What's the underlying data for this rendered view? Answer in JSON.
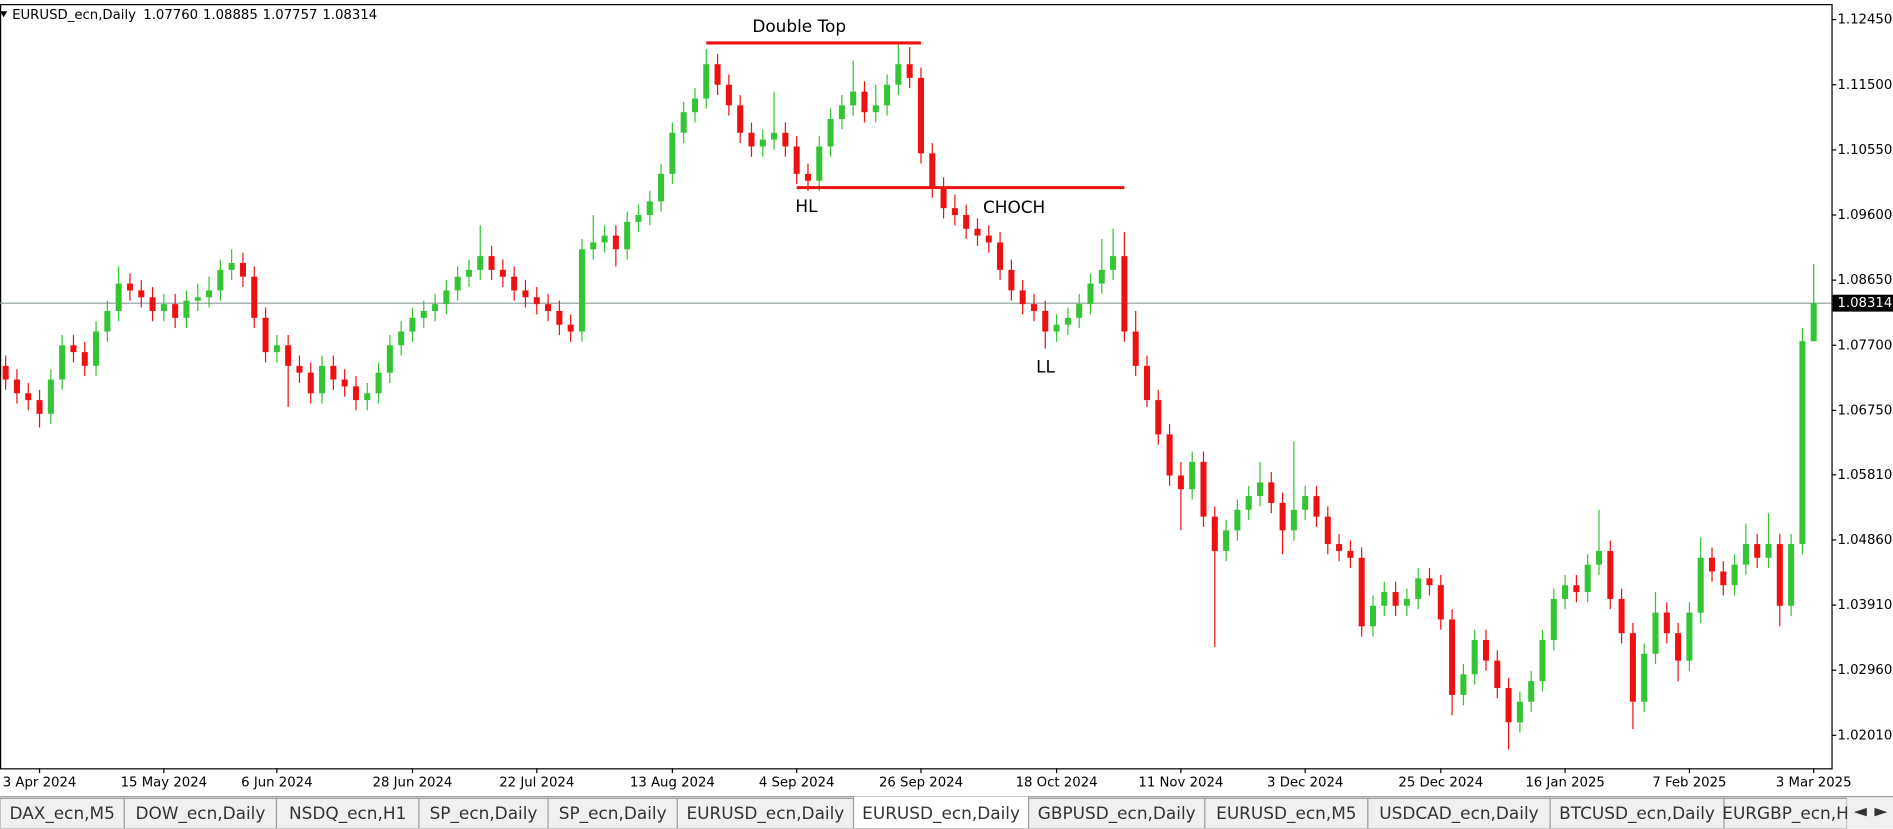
{
  "chart_data": {
    "type": "candlestick",
    "symbol": "EURUSD_ecn,Daily",
    "header_values": [
      "1.07760",
      "1.08885",
      "1.07757",
      "1.08314"
    ],
    "up_color": "#33c533",
    "down_color": "#ee1111",
    "ylim": [
      1.0153,
      1.1266
    ],
    "yticks": [
      {
        "value": 1.1245,
        "label": "1.12450"
      },
      {
        "value": 1.115,
        "label": "1.11500"
      },
      {
        "value": 1.1055,
        "label": "1.10550"
      },
      {
        "value": 1.096,
        "label": "1.09600"
      },
      {
        "value": 1.0865,
        "label": "1.08650"
      },
      {
        "value": 1.077,
        "label": "1.07700"
      },
      {
        "value": 1.0675,
        "label": "1.06750"
      },
      {
        "value": 1.0581,
        "label": "1.05810"
      },
      {
        "value": 1.0486,
        "label": "1.04860"
      },
      {
        "value": 1.0391,
        "label": "1.03910"
      },
      {
        "value": 1.0296,
        "label": "1.02960"
      },
      {
        "value": 1.0201,
        "label": "1.02010"
      }
    ],
    "xticks": [
      {
        "value": 3,
        "label": "3 Apr 2024"
      },
      {
        "value": 14,
        "label": "15 May 2024"
      },
      {
        "value": 24,
        "label": "6 Jun 2024"
      },
      {
        "value": 36,
        "label": "28 Jun 2024"
      },
      {
        "value": 47,
        "label": "22 Jul 2024"
      },
      {
        "value": 59,
        "label": "13 Aug 2024"
      },
      {
        "value": 70,
        "label": "4 Sep 2024"
      },
      {
        "value": 81,
        "label": "26 Sep 2024"
      },
      {
        "value": 93,
        "label": "18 Oct 2024"
      },
      {
        "value": 104,
        "label": "11 Nov 2024"
      },
      {
        "value": 115,
        "label": "3 Dec 2024"
      },
      {
        "value": 127,
        "label": "25 Dec 2024"
      },
      {
        "value": 138,
        "label": "16 Jan 2025"
      },
      {
        "value": 149,
        "label": "7 Feb 2025"
      },
      {
        "value": 160,
        "label": "3 Mar 2025"
      }
    ],
    "last_price": {
      "value": 1.08314,
      "label": "1.08314"
    },
    "levels": [
      {
        "value": 1.1211,
        "from": 62,
        "to": 81,
        "color": "#ee1111"
      },
      {
        "value": 1.1,
        "from": 70,
        "to": 99,
        "color": "#ee1111"
      }
    ],
    "annotations": [
      "Double Top",
      "HL",
      "CHOCH",
      "LL"
    ],
    "candles": [
      [
        1.074,
        1.0755,
        1.0705,
        1.072
      ],
      [
        1.072,
        1.0735,
        1.0685,
        1.07
      ],
      [
        1.07,
        1.0715,
        1.0675,
        1.069
      ],
      [
        1.069,
        1.0705,
        1.065,
        1.067
      ],
      [
        1.067,
        1.0735,
        1.0655,
        1.072
      ],
      [
        1.072,
        1.0785,
        1.0705,
        1.077
      ],
      [
        1.077,
        1.0785,
        1.0745,
        1.076
      ],
      [
        1.076,
        1.0775,
        1.0725,
        1.074
      ],
      [
        1.074,
        1.0805,
        1.0725,
        1.079
      ],
      [
        1.079,
        1.0835,
        1.0775,
        1.082
      ],
      [
        1.082,
        1.0885,
        1.0805,
        1.086
      ],
      [
        1.086,
        1.0875,
        1.0835,
        1.085
      ],
      [
        1.085,
        1.0865,
        1.0825,
        1.084
      ],
      [
        1.084,
        1.0855,
        1.0805,
        1.082
      ],
      [
        1.082,
        1.0845,
        1.0805,
        1.083
      ],
      [
        1.083,
        1.0845,
        1.0795,
        1.081
      ],
      [
        1.081,
        1.085,
        1.0795,
        1.0835
      ],
      [
        1.0835,
        1.086,
        1.082,
        1.084
      ],
      [
        1.084,
        1.087,
        1.0825,
        1.085
      ],
      [
        1.085,
        1.0895,
        1.0835,
        1.088
      ],
      [
        1.088,
        1.091,
        1.0865,
        1.089
      ],
      [
        1.089,
        1.0905,
        1.0855,
        1.087
      ],
      [
        1.087,
        1.0885,
        1.0795,
        1.081
      ],
      [
        1.081,
        1.0825,
        1.0745,
        1.076
      ],
      [
        1.076,
        1.0785,
        1.0745,
        1.077
      ],
      [
        1.077,
        1.0785,
        1.068,
        1.074
      ],
      [
        1.074,
        1.0755,
        1.0715,
        1.073
      ],
      [
        1.073,
        1.0745,
        1.0685,
        1.07
      ],
      [
        1.07,
        1.0755,
        1.0685,
        1.074
      ],
      [
        1.074,
        1.0755,
        1.0705,
        1.072
      ],
      [
        1.072,
        1.0735,
        1.0695,
        1.071
      ],
      [
        1.071,
        1.0725,
        1.0675,
        1.069
      ],
      [
        1.069,
        1.0715,
        1.0675,
        1.07
      ],
      [
        1.07,
        1.0745,
        1.0685,
        1.073
      ],
      [
        1.073,
        1.0785,
        1.0715,
        1.077
      ],
      [
        1.077,
        1.0805,
        1.0755,
        1.079
      ],
      [
        1.079,
        1.0825,
        1.0775,
        1.081
      ],
      [
        1.081,
        1.0835,
        1.0795,
        1.082
      ],
      [
        1.082,
        1.0845,
        1.0805,
        1.083
      ],
      [
        1.083,
        1.0865,
        1.0815,
        1.085
      ],
      [
        1.085,
        1.0885,
        1.0835,
        1.087
      ],
      [
        1.087,
        1.0895,
        1.0855,
        1.088
      ],
      [
        1.088,
        1.0945,
        1.0865,
        1.09
      ],
      [
        1.09,
        1.0915,
        1.0865,
        1.088
      ],
      [
        1.088,
        1.0895,
        1.0855,
        1.087
      ],
      [
        1.087,
        1.0885,
        1.0835,
        1.085
      ],
      [
        1.085,
        1.0865,
        1.0825,
        1.084
      ],
      [
        1.084,
        1.0855,
        1.0815,
        1.083
      ],
      [
        1.083,
        1.0845,
        1.0805,
        1.082
      ],
      [
        1.082,
        1.0835,
        1.0785,
        1.08
      ],
      [
        1.08,
        1.0815,
        1.0775,
        1.079
      ],
      [
        1.079,
        1.0925,
        1.0775,
        1.091
      ],
      [
        1.091,
        1.096,
        1.0895,
        1.092
      ],
      [
        1.092,
        1.0945,
        1.0905,
        1.093
      ],
      [
        1.093,
        1.0945,
        1.0885,
        1.091
      ],
      [
        1.091,
        1.0965,
        1.0895,
        1.095
      ],
      [
        1.095,
        1.0975,
        1.0935,
        1.096
      ],
      [
        1.096,
        1.0995,
        1.0945,
        1.098
      ],
      [
        1.098,
        1.1035,
        1.0965,
        1.102
      ],
      [
        1.102,
        1.1095,
        1.1005,
        1.108
      ],
      [
        1.108,
        1.1125,
        1.1065,
        1.111
      ],
      [
        1.111,
        1.1145,
        1.1095,
        1.113
      ],
      [
        1.113,
        1.1202,
        1.1115,
        1.118
      ],
      [
        1.118,
        1.1195,
        1.1135,
        1.115
      ],
      [
        1.115,
        1.1165,
        1.1105,
        1.112
      ],
      [
        1.112,
        1.1135,
        1.1065,
        1.108
      ],
      [
        1.108,
        1.1095,
        1.1045,
        1.106
      ],
      [
        1.106,
        1.1085,
        1.1045,
        1.107
      ],
      [
        1.107,
        1.114,
        1.1055,
        1.108
      ],
      [
        1.108,
        1.1095,
        1.1045,
        1.106
      ],
      [
        1.106,
        1.1075,
        1.1005,
        1.102
      ],
      [
        1.102,
        1.1035,
        1.0995,
        1.101
      ],
      [
        1.101,
        1.1075,
        1.0995,
        1.106
      ],
      [
        1.106,
        1.1115,
        1.1045,
        1.11
      ],
      [
        1.11,
        1.1135,
        1.1085,
        1.112
      ],
      [
        1.112,
        1.1185,
        1.1105,
        1.114
      ],
      [
        1.114,
        1.1155,
        1.1095,
        1.111
      ],
      [
        1.111,
        1.115,
        1.1095,
        1.112
      ],
      [
        1.112,
        1.1165,
        1.1105,
        1.115
      ],
      [
        1.115,
        1.121,
        1.1135,
        1.118
      ],
      [
        1.118,
        1.1205,
        1.1145,
        1.116
      ],
      [
        1.116,
        1.1175,
        1.1035,
        1.105
      ],
      [
        1.105,
        1.1065,
        1.0985,
        1.1
      ],
      [
        1.1,
        1.1015,
        1.0955,
        1.097
      ],
      [
        1.097,
        1.099,
        1.0945,
        1.096
      ],
      [
        1.096,
        1.0975,
        1.0925,
        1.094
      ],
      [
        1.094,
        1.0955,
        1.0915,
        1.093
      ],
      [
        1.093,
        1.0945,
        1.0905,
        1.092
      ],
      [
        1.092,
        1.0935,
        1.0865,
        1.088
      ],
      [
        1.088,
        1.0895,
        1.0835,
        1.085
      ],
      [
        1.085,
        1.0865,
        1.0815,
        1.083
      ],
      [
        1.083,
        1.0845,
        1.0805,
        1.082
      ],
      [
        1.082,
        1.0835,
        1.0765,
        1.079
      ],
      [
        1.079,
        1.0815,
        1.0775,
        1.08
      ],
      [
        1.08,
        1.0825,
        1.0785,
        1.081
      ],
      [
        1.081,
        1.0845,
        1.0795,
        1.083
      ],
      [
        1.083,
        1.0875,
        1.0815,
        1.086
      ],
      [
        1.086,
        1.0925,
        1.0845,
        1.088
      ],
      [
        1.088,
        1.094,
        1.0865,
        1.09
      ],
      [
        1.09,
        1.0935,
        1.0775,
        1.079
      ],
      [
        1.079,
        1.082,
        1.0725,
        1.074
      ],
      [
        1.074,
        1.0755,
        1.068,
        1.069
      ],
      [
        1.069,
        1.0705,
        1.0625,
        1.064
      ],
      [
        1.064,
        1.0655,
        1.0565,
        1.058
      ],
      [
        1.058,
        1.06,
        1.05,
        1.056
      ],
      [
        1.056,
        1.0615,
        1.0545,
        1.06
      ],
      [
        1.06,
        1.0615,
        1.0505,
        1.052
      ],
      [
        1.052,
        1.0535,
        1.033,
        1.047
      ],
      [
        1.047,
        1.0515,
        1.0455,
        1.05
      ],
      [
        1.05,
        1.0545,
        1.0485,
        1.053
      ],
      [
        1.053,
        1.0565,
        1.0515,
        1.055
      ],
      [
        1.055,
        1.06,
        1.0535,
        1.057
      ],
      [
        1.057,
        1.0585,
        1.0525,
        1.054
      ],
      [
        1.054,
        1.0555,
        1.0465,
        1.05
      ],
      [
        1.05,
        1.063,
        1.0485,
        1.053
      ],
      [
        1.053,
        1.0565,
        1.0515,
        1.055
      ],
      [
        1.055,
        1.0565,
        1.0505,
        1.052
      ],
      [
        1.052,
        1.0535,
        1.0465,
        1.048
      ],
      [
        1.048,
        1.0495,
        1.0455,
        1.047
      ],
      [
        1.047,
        1.0485,
        1.0445,
        1.046
      ],
      [
        1.046,
        1.0475,
        1.0345,
        1.036
      ],
      [
        1.036,
        1.0405,
        1.0345,
        1.039
      ],
      [
        1.039,
        1.0425,
        1.0375,
        1.041
      ],
      [
        1.041,
        1.0425,
        1.0375,
        1.039
      ],
      [
        1.039,
        1.0415,
        1.0375,
        1.04
      ],
      [
        1.04,
        1.0445,
        1.0385,
        1.043
      ],
      [
        1.043,
        1.0445,
        1.0405,
        1.042
      ],
      [
        1.042,
        1.0435,
        1.0355,
        1.037
      ],
      [
        1.037,
        1.0385,
        1.023,
        1.026
      ],
      [
        1.026,
        1.0305,
        1.0245,
        1.029
      ],
      [
        1.029,
        1.0355,
        1.0275,
        1.034
      ],
      [
        1.034,
        1.0355,
        1.0295,
        1.031
      ],
      [
        1.031,
        1.0325,
        1.0255,
        1.027
      ],
      [
        1.027,
        1.0285,
        1.018,
        1.022
      ],
      [
        1.022,
        1.0265,
        1.0205,
        1.025
      ],
      [
        1.025,
        1.0295,
        1.0235,
        1.028
      ],
      [
        1.028,
        1.0355,
        1.0265,
        1.034
      ],
      [
        1.034,
        1.0415,
        1.0325,
        1.04
      ],
      [
        1.04,
        1.0435,
        1.0385,
        1.042
      ],
      [
        1.042,
        1.0435,
        1.0395,
        1.041
      ],
      [
        1.041,
        1.0465,
        1.0395,
        1.045
      ],
      [
        1.045,
        1.053,
        1.0435,
        1.047
      ],
      [
        1.047,
        1.0485,
        1.0385,
        1.04
      ],
      [
        1.04,
        1.0415,
        1.0335,
        1.035
      ],
      [
        1.035,
        1.0365,
        1.021,
        1.025
      ],
      [
        1.025,
        1.0335,
        1.0235,
        1.032
      ],
      [
        1.032,
        1.041,
        1.0305,
        1.038
      ],
      [
        1.038,
        1.0395,
        1.0335,
        1.035
      ],
      [
        1.035,
        1.0365,
        1.028,
        1.031
      ],
      [
        1.031,
        1.0395,
        1.0295,
        1.038
      ],
      [
        1.038,
        1.049,
        1.0365,
        1.046
      ],
      [
        1.046,
        1.0475,
        1.0425,
        1.044
      ],
      [
        1.044,
        1.0455,
        1.0405,
        1.042
      ],
      [
        1.042,
        1.0465,
        1.0405,
        1.045
      ],
      [
        1.045,
        1.051,
        1.0435,
        1.048
      ],
      [
        1.048,
        1.0495,
        1.0445,
        1.046
      ],
      [
        1.046,
        1.0525,
        1.0445,
        1.048
      ],
      [
        1.048,
        1.0495,
        1.036,
        1.039
      ],
      [
        1.039,
        1.0495,
        1.0375,
        1.048
      ],
      [
        1.048,
        1.0795,
        1.0465,
        1.0776
      ],
      [
        1.0776,
        1.08885,
        1.07757,
        1.08314
      ]
    ]
  },
  "tabs": {
    "items": [
      "DAX_ecn,M5",
      "DOW_ecn,Daily",
      "NSDQ_ecn,H1",
      "SP_ecn,Daily",
      "SP_ecn,Daily",
      "EURUSD_ecn,Daily",
      "EURUSD_ecn,Daily",
      "GBPUSD_ecn,Daily",
      "EURUSD_ecn,M5",
      "USDCAD_ecn,Daily",
      "BTCUSD_ecn,Daily",
      "EURGBP_ecn,H"
    ],
    "active": 6
  }
}
